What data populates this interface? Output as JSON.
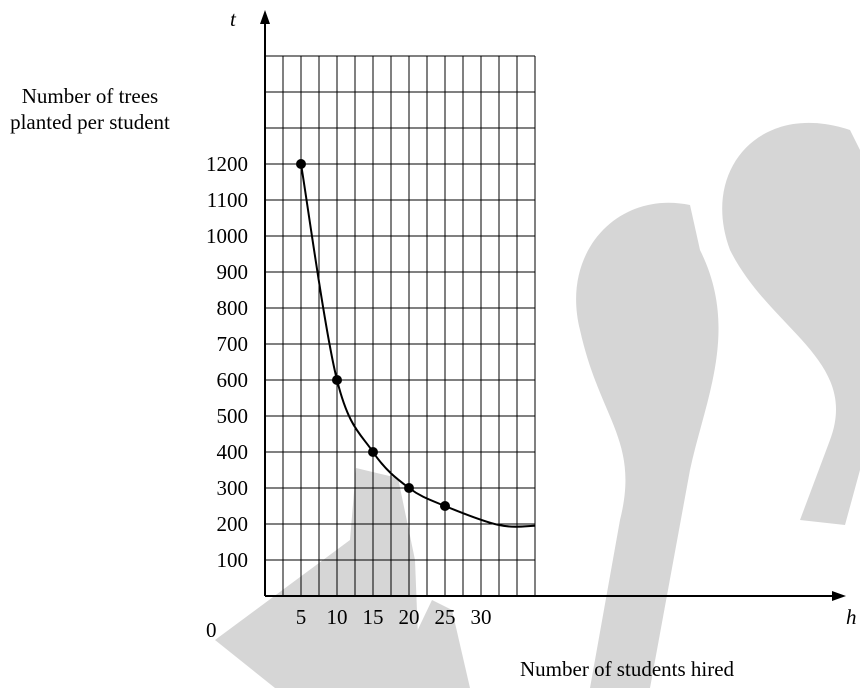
{
  "chart_data": {
    "type": "line",
    "title": "",
    "xlabel": "Number of students hired",
    "ylabel": "Number of trees planted per student",
    "x_variable": "h",
    "y_variable": "t",
    "origin_label": "0",
    "xlim": [
      0,
      37.5
    ],
    "ylim": [
      0,
      1500
    ],
    "x_ticks": [
      5,
      10,
      15,
      20,
      25,
      30
    ],
    "y_ticks": [
      100,
      200,
      300,
      400,
      500,
      600,
      700,
      800,
      900,
      1000,
      1100,
      1200
    ],
    "x_grid_step": 2.5,
    "y_grid_step": 100,
    "grid": true,
    "series": [
      {
        "points": [
          [
            5,
            1200
          ],
          [
            10,
            600
          ],
          [
            15,
            400
          ],
          [
            20,
            300
          ],
          [
            25,
            250
          ]
        ],
        "curve_extends_to": [
          37.5,
          195
        ]
      }
    ],
    "watermark_text": "Mas"
  },
  "colors": {
    "ink": "#000000",
    "watermark": "#d6d6d6",
    "background": "#ffffff"
  }
}
